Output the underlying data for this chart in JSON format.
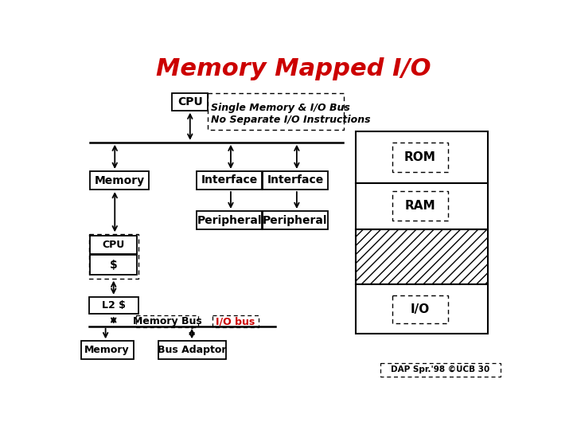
{
  "title": "Memory Mapped I/O",
  "title_color": "#cc0000",
  "title_fontsize": 22,
  "bg_color": "#ffffff",
  "annotation_text": "Single Memory & I/O Bus\nNo Separate I/O Instructions",
  "memory_bus_label": "Memory Bus",
  "io_bus_label": "I/O bus",
  "credit_text": "DAP Spr.'98 ©UCB 30"
}
